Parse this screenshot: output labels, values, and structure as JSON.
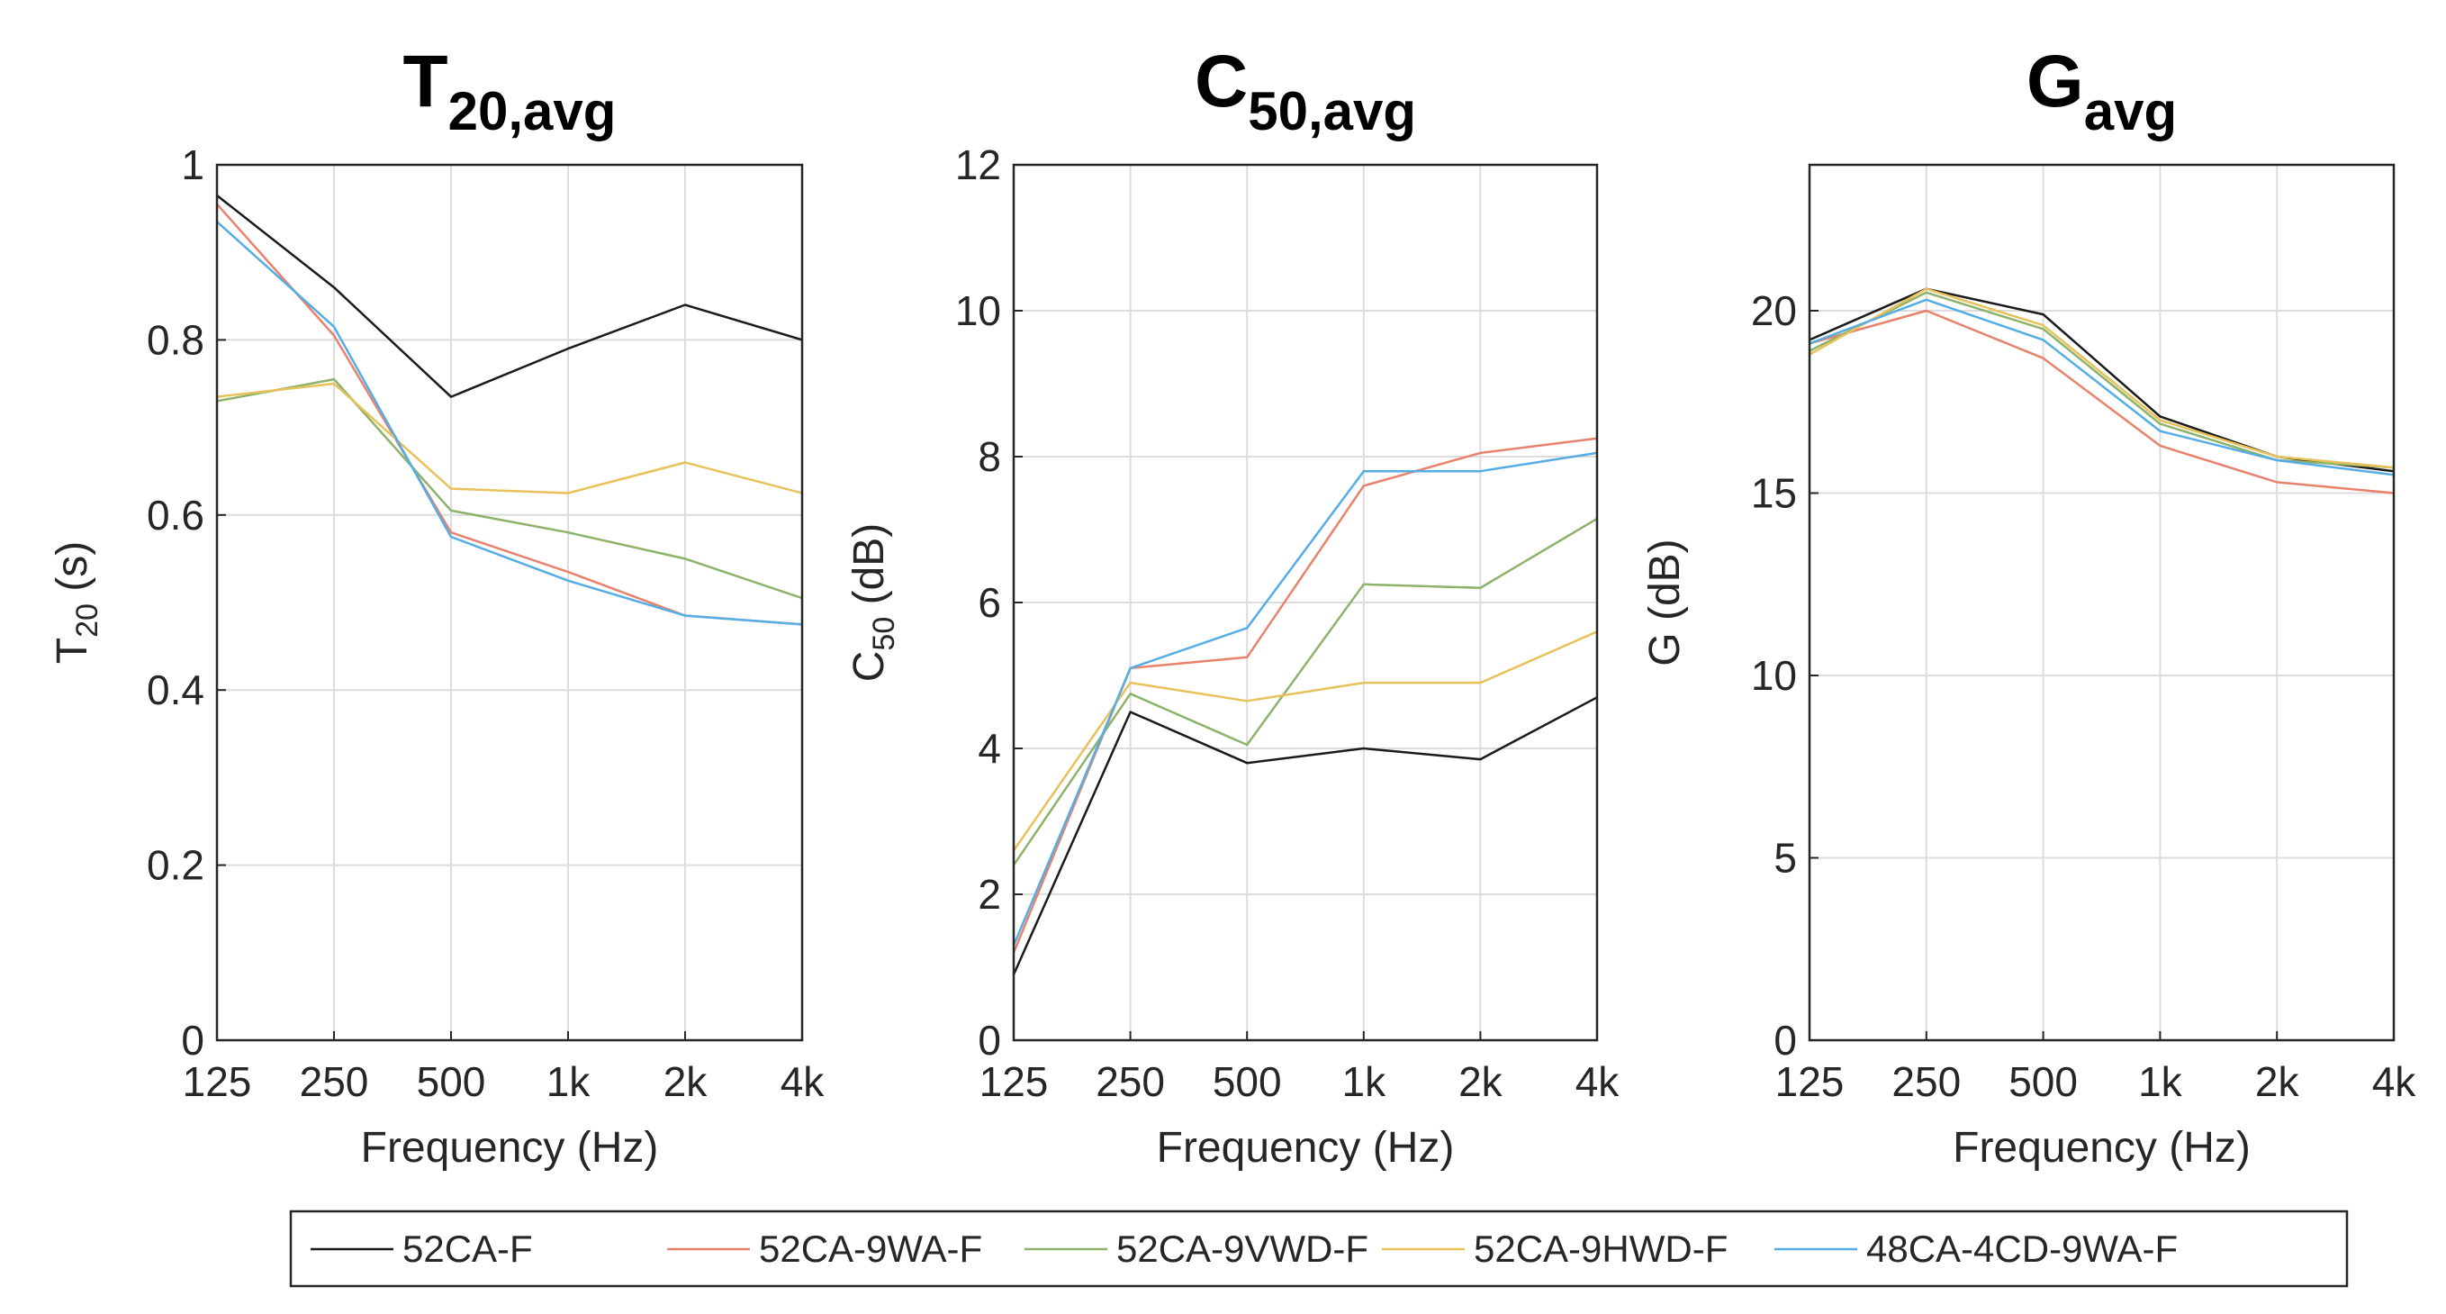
{
  "colors": {
    "52CA-F": "#1a1a1a",
    "52CA-9WA-F": "#e8826c",
    "52CA-9VWD-F": "#8db36a",
    "52CA-9HWD-F": "#e9c15a",
    "48CA-4CD-9WA-F": "#55ade5"
  },
  "legend": [
    "52CA-F",
    "52CA-9WA-F",
    "52CA-9VWD-F",
    "52CA-9HWD-F",
    "48CA-4CD-9WA-F"
  ],
  "chart_data": [
    {
      "type": "line",
      "title": "T",
      "title_sub": "20,avg",
      "ylabel": "T",
      "ylabel_sub": "20",
      "ylabel_unit": " (s)",
      "xlabel": "Frequency (Hz)",
      "categories": [
        "125",
        "250",
        "500",
        "1k",
        "2k",
        "4k"
      ],
      "ylim": [
        0,
        1
      ],
      "yticks": [
        "0",
        "0.2",
        "0.4",
        "0.6",
        "0.8",
        "1"
      ],
      "yticks_values": [
        0,
        0.2,
        0.4,
        0.6,
        0.8,
        1
      ],
      "grid": true,
      "series": [
        {
          "name": "52CA-F",
          "values": [
            0.965,
            0.86,
            0.735,
            0.79,
            0.84,
            0.8
          ]
        },
        {
          "name": "52CA-9WA-F",
          "values": [
            0.955,
            0.805,
            0.58,
            0.535,
            0.485,
            0.475
          ]
        },
        {
          "name": "52CA-9VWD-F",
          "values": [
            0.73,
            0.755,
            0.605,
            0.58,
            0.55,
            0.505
          ]
        },
        {
          "name": "52CA-9HWD-F",
          "values": [
            0.735,
            0.75,
            0.63,
            0.625,
            0.66,
            0.625
          ]
        },
        {
          "name": "48CA-4CD-9WA-F",
          "values": [
            0.935,
            0.815,
            0.575,
            0.525,
            0.485,
            0.475
          ]
        }
      ]
    },
    {
      "type": "line",
      "title": "C",
      "title_sub": "50,avg",
      "ylabel": "C",
      "ylabel_sub": "50",
      "ylabel_unit": " (dB)",
      "xlabel": "Frequency (Hz)",
      "categories": [
        "125",
        "250",
        "500",
        "1k",
        "2k",
        "4k"
      ],
      "ylim": [
        0,
        12
      ],
      "yticks": [
        "0",
        "2",
        "4",
        "6",
        "8",
        "10",
        "12"
      ],
      "yticks_values": [
        0,
        2,
        4,
        6,
        8,
        10,
        12
      ],
      "grid": true,
      "series": [
        {
          "name": "52CA-F",
          "values": [
            0.9,
            4.5,
            3.8,
            4.0,
            3.85,
            4.7
          ]
        },
        {
          "name": "52CA-9WA-F",
          "values": [
            1.2,
            5.1,
            5.25,
            7.6,
            8.05,
            8.25
          ]
        },
        {
          "name": "52CA-9VWD-F",
          "values": [
            2.4,
            4.75,
            4.05,
            6.25,
            6.2,
            7.15
          ]
        },
        {
          "name": "52CA-9HWD-F",
          "values": [
            2.6,
            4.9,
            4.65,
            4.9,
            4.9,
            5.6
          ]
        },
        {
          "name": "48CA-4CD-9WA-F",
          "values": [
            1.3,
            5.1,
            5.65,
            7.8,
            7.8,
            8.05
          ]
        }
      ]
    },
    {
      "type": "line",
      "title": "G",
      "title_sub": "avg",
      "ylabel": "G",
      "ylabel_sub": "",
      "ylabel_unit": " (dB)",
      "xlabel": "Frequency (Hz)",
      "categories": [
        "125",
        "250",
        "500",
        "1k",
        "2k",
        "4k"
      ],
      "ylim": [
        0,
        24
      ],
      "yticks": [
        "0",
        "5",
        "10",
        "15",
        "20"
      ],
      "yticks_values": [
        0,
        5,
        10,
        15,
        20
      ],
      "grid": true,
      "series": [
        {
          "name": "52CA-F",
          "values": [
            19.2,
            20.6,
            19.9,
            17.1,
            16.0,
            15.6
          ]
        },
        {
          "name": "52CA-9WA-F",
          "values": [
            19.1,
            20.0,
            18.7,
            16.3,
            15.3,
            15.0
          ]
        },
        {
          "name": "52CA-9VWD-F",
          "values": [
            18.9,
            20.5,
            19.5,
            16.9,
            15.9,
            15.7
          ]
        },
        {
          "name": "52CA-9HWD-F",
          "values": [
            18.8,
            20.6,
            19.6,
            17.0,
            16.0,
            15.7
          ]
        },
        {
          "name": "48CA-4CD-9WA-F",
          "values": [
            19.1,
            20.3,
            19.2,
            16.7,
            15.9,
            15.5
          ]
        }
      ]
    }
  ]
}
